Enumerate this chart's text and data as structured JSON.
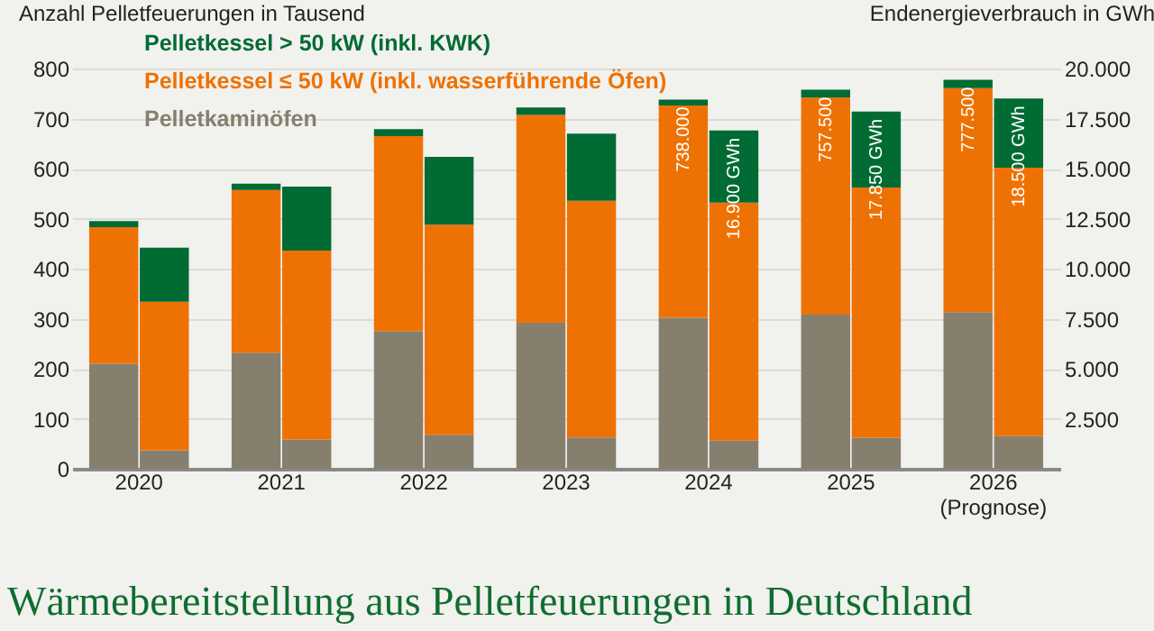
{
  "chart_data": {
    "type": "bar",
    "title": "Wärmebereitstellung aus Pelletfeuerungen in Deutschland",
    "ylabel": "Anzahl Pelletfeuerungen in Tausend",
    "y2label": "Endenergieverbrauch in GWh",
    "annotations": [
      {
        "text": "738.000",
        "x": "2024",
        "y": 738
      },
      {
        "text": "757.500",
        "x": "2025",
        "y": 757.5
      },
      {
        "text": "777.500",
        "x": "2026 (Prognose)",
        "y": 777.5
      },
      {
        "text": "16.900 GWh",
        "x": "2024",
        "y": 676
      },
      {
        "text": "17.850 GWh",
        "x": "2025",
        "y": 714
      },
      {
        "text": "18.500 GWh",
        "x": "2026 (Prognose)",
        "y": 740
      }
    ],
    "categories": [
      "2020",
      "2021",
      "2022",
      "2023",
      "2024",
      "2025",
      "2026 (Prognose)"
    ],
    "stacked": true,
    "grid": "y",
    "legend": "top left",
    "ylim": [
      0,
      800
    ],
    "yticks": [
      0,
      100,
      200,
      300,
      400,
      500,
      600,
      700,
      800
    ],
    "y2lim": [
      0,
      20000
    ],
    "y2ticks": [
      {
        "value": 2500,
        "label": "2.500"
      },
      {
        "value": 5000,
        "label": "5.000"
      },
      {
        "value": 7500,
        "label": "7.500"
      },
      {
        "value": 10000,
        "label": "10.000"
      },
      {
        "value": 12500,
        "label": "12.500"
      },
      {
        "value": 15000,
        "label": "15.000"
      },
      {
        "value": 17500,
        "label": "17.500"
      },
      {
        "value": 20000,
        "label": "20.000"
      }
    ],
    "series": [
      {
        "name": "Pelletkaminöfen",
        "color": "#877f6e",
        "values": [
          210,
          232,
          275,
          292,
          302,
          308,
          313
        ]
      },
      {
        "name": "Pelletkessel ≤ 50 kW (inkl. wasserführende Öfen)",
        "color": "#ee7203",
        "values": [
          273,
          325,
          390,
          415,
          424,
          434,
          448
        ]
      },
      {
        "name": "Pelletkessel > 50 kW (inkl. KWK)",
        "color": "#006b33",
        "values": [
          12,
          13,
          14,
          15,
          12,
          15.5,
          16.5
        ]
      },
      {
        "color": "#877f6e",
        "axis": "y2",
        "values": [
          925,
          1460,
          1700,
          1570,
          1410,
          1550,
          1630
        ]
      },
      {
        "color": "#ee7203",
        "axis": "y2",
        "values": [
          7425,
          9440,
          10500,
          11820,
          11890,
          12500,
          13420
        ]
      },
      {
        "color": "#006b33",
        "axis": "y2",
        "values": [
          2700,
          3200,
          3380,
          3360,
          3600,
          3800,
          3450
        ]
      }
    ]
  }
}
